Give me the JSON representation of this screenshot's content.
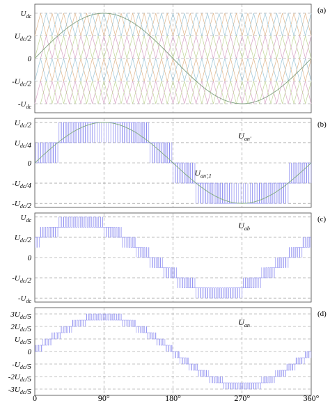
{
  "chart_data": [
    {
      "id": "a",
      "type": "line",
      "panel_label": "(a)",
      "y_ticks": [
        "U_dc",
        "U_dc/2",
        "0",
        "-U_dc/2",
        "-U_dc"
      ],
      "y_tick_values": [
        1,
        0.5,
        0,
        -0.5,
        -1
      ],
      "ylim": [
        -1.2,
        1.2
      ],
      "series": [
        {
          "kind": "carriers",
          "count": 4,
          "colors": [
            "#d9a7c8",
            "#9fc7d8",
            "#c2d69a",
            "#e0b890"
          ],
          "carrier_periods": 24
        },
        {
          "kind": "reference",
          "amplitude": 1.0,
          "color": "#7f9f7f"
        }
      ],
      "annotations": []
    },
    {
      "id": "b",
      "type": "line",
      "panel_label": "(b)",
      "y_ticks": [
        "U_dc/2",
        "U_dc/4",
        "0",
        "-U_dc/4",
        "-U_dc/2"
      ],
      "y_tick_values": [
        0.5,
        0.25,
        0,
        -0.25,
        -0.5
      ],
      "ylim": [
        -0.55,
        0.55
      ],
      "series": [
        {
          "kind": "pwm",
          "levels": 5,
          "max": 0.5,
          "amplitude": 0.5,
          "phase_deg": 0,
          "color": "#8c8cf0"
        },
        {
          "kind": "fundamental",
          "amplitude": 0.5,
          "phase_deg": 0,
          "color": "#7fa97f"
        }
      ],
      "annotations": [
        {
          "text": "U_an'",
          "x_deg": 265,
          "y": 0.3
        },
        {
          "text": "U_an',1",
          "x_deg": 208,
          "y": -0.16
        }
      ]
    },
    {
      "id": "c",
      "type": "line",
      "panel_label": "(c)",
      "y_ticks": [
        "U_dc",
        "U_dc/2",
        "0",
        "-U_dc/2",
        "-U_dc"
      ],
      "y_tick_values": [
        1,
        0.5,
        0,
        -0.5,
        -1
      ],
      "ylim": [
        -1.1,
        1.1
      ],
      "series": [
        {
          "kind": "pwm",
          "levels": 9,
          "max": 1.0,
          "amplitude": 0.866,
          "phase_deg": 30,
          "color": "#8c8cf0"
        }
      ],
      "annotations": [
        {
          "text": "U_ab",
          "x_deg": 265,
          "y": 0.72
        }
      ]
    },
    {
      "id": "d",
      "type": "line",
      "panel_label": "(d)",
      "y_ticks": [
        "3U_dc/5",
        "2U_dc/5",
        "U_dc/5",
        "0",
        "-U_dc/5",
        "-2U_dc/5",
        "-3U_dc/5"
      ],
      "y_tick_values": [
        0.6,
        0.4,
        0.2,
        0,
        -0.2,
        -0.4,
        -0.6
      ],
      "ylim": [
        -0.7,
        0.7
      ],
      "series": [
        {
          "kind": "pwm",
          "levels": 13,
          "max": 0.6,
          "amplitude": 0.55,
          "phase_deg": 0,
          "color": "#8c8cf0"
        }
      ],
      "annotations": [
        {
          "text": "U_an",
          "x_deg": 265,
          "y": 0.42
        }
      ]
    }
  ],
  "x_axis": {
    "ticks": [
      "0",
      "90°",
      "180°",
      "270°",
      "360°"
    ],
    "values": [
      0,
      90,
      180,
      270,
      360
    ],
    "xlim": [
      0,
      360
    ]
  }
}
